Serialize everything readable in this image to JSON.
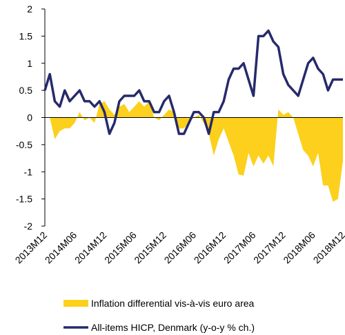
{
  "chart_data": {
    "type": "line",
    "categories": [
      "2013M12",
      null,
      null,
      null,
      null,
      null,
      "2014M06",
      null,
      null,
      null,
      null,
      null,
      "2014M12",
      null,
      null,
      null,
      null,
      null,
      "2015M06",
      null,
      null,
      null,
      null,
      null,
      "2015M12",
      null,
      null,
      null,
      null,
      null,
      "2016M06",
      null,
      null,
      null,
      null,
      null,
      "2016M12",
      null,
      null,
      null,
      null,
      null,
      "2017M06",
      null,
      null,
      null,
      null,
      null,
      "2017M12",
      null,
      null,
      null,
      null,
      null,
      "2018M06",
      null,
      null,
      null,
      null,
      null,
      "2018M12"
    ],
    "series": [
      {
        "name": "Inflation differential vis-à-vis euro area",
        "type": "area",
        "color": "#fcd01c",
        "values": [
          0,
          0,
          -0.4,
          -0.25,
          -0.2,
          -0.2,
          -0.1,
          0.1,
          -0.05,
          0,
          -0.1,
          0.25,
          0.3,
          0.15,
          0.05,
          0.2,
          0.25,
          0.1,
          0.2,
          0.3,
          0.2,
          0.3,
          0,
          -0.05,
          0.05,
          0.15,
          0.1,
          -0.2,
          -0.2,
          -0.1,
          0,
          0.05,
          -0.1,
          -0.3,
          -0.7,
          -0.4,
          -0.2,
          -0.45,
          -0.7,
          -1.05,
          -1.07,
          -0.65,
          -0.9,
          -0.7,
          -0.85,
          -0.7,
          -0.9,
          0.15,
          0.05,
          0.1,
          0,
          -0.3,
          -0.6,
          -0.7,
          -0.9,
          -0.65,
          -1.25,
          -1.25,
          -1.55,
          -1.5,
          -0.8
        ]
      },
      {
        "name": "All-items HICP, Denmark (y-o-y % ch.)",
        "type": "line",
        "color": "#262a6b",
        "values": [
          0.5,
          0.8,
          0.3,
          0.2,
          0.5,
          0.3,
          0.4,
          0.5,
          0.3,
          0.3,
          0.2,
          0.3,
          0.1,
          -0.3,
          -0.1,
          0.3,
          0.4,
          0.4,
          0.4,
          0.5,
          0.3,
          0.3,
          0.1,
          0.1,
          0.3,
          0.4,
          0.1,
          -0.3,
          -0.3,
          -0.1,
          0.1,
          0.1,
          0,
          -0.3,
          0.1,
          0.1,
          0.3,
          0.7,
          0.9,
          0.9,
          1.0,
          0.7,
          0.4,
          1.5,
          1.5,
          1.6,
          1.4,
          1.3,
          0.8,
          0.6,
          0.5,
          0.4,
          0.7,
          1.0,
          1.1,
          0.9,
          0.8,
          0.5,
          0.7,
          0.7,
          0.7
        ]
      }
    ],
    "ylim": [
      -2,
      2
    ],
    "yticks": [
      -2,
      -1.5,
      -1,
      -0.5,
      0,
      0.5,
      1,
      1.5,
      2
    ]
  }
}
